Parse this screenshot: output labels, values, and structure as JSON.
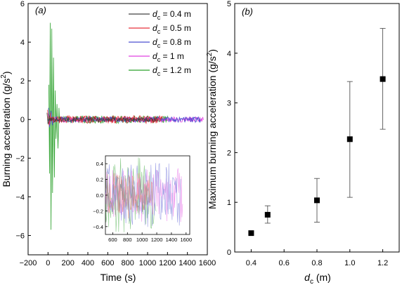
{
  "chart_data": [
    {
      "type": "line",
      "panel_label": "(a)",
      "xlabel": "Time (s)",
      "ylabel_main": "Burning acceleration (g/s",
      "ylabel_sup": "2",
      "ylabel_tail": ")",
      "xlim": [
        -200,
        1600
      ],
      "ylim": [
        -7,
        6
      ],
      "xticks": [
        -200,
        0,
        200,
        400,
        600,
        800,
        1000,
        1200,
        1400,
        1600
      ],
      "yticks": [
        -6,
        -4,
        -2,
        0,
        2,
        4,
        6
      ],
      "ytick_labels": [
        "−6",
        "−4",
        "−2",
        "0",
        "2",
        "4",
        "6"
      ],
      "xtick_labels": [
        "−200",
        "0",
        "200",
        "400",
        "600",
        "800",
        "1000",
        "1200",
        "1400",
        "1600"
      ],
      "legend_position": "top-right",
      "series": [
        {
          "name_prefix": "d",
          "name_sub": "c",
          "name_value": " = 0.4 m",
          "color": "#404040",
          "t_start": -20,
          "t_end": 1100,
          "amp": 0.12,
          "spikes": [
            [
              -10,
              0.35
            ],
            [
              0,
              -0.25
            ],
            [
              15,
              0.2
            ]
          ]
        },
        {
          "name_prefix": "d",
          "name_sub": "c",
          "name_value": " = 0.5 m",
          "color": "#e8303a",
          "t_start": -10,
          "t_end": 1150,
          "amp": 0.2,
          "spikes": [
            [
              -5,
              0.5
            ],
            [
              10,
              -0.3
            ],
            [
              25,
              0.35
            ]
          ]
        },
        {
          "name_prefix": "d",
          "name_sub": "c",
          "name_value": " = 0.8 m",
          "color": "#4a4fd0",
          "t_start": 0,
          "t_end": 1530,
          "amp": 0.15,
          "spikes": [
            [
              5,
              0.6
            ],
            [
              15,
              -0.4
            ],
            [
              30,
              0.45
            ],
            [
              45,
              -0.3
            ]
          ]
        },
        {
          "name_prefix": "d",
          "name_sub": "c",
          "name_value": " = 1 m",
          "color": "#e040e0",
          "t_start": 0,
          "t_end": 1560,
          "amp": 0.14,
          "spikes": [
            [
              5,
              0.3
            ],
            [
              20,
              -0.25
            ]
          ]
        },
        {
          "name_prefix": "d",
          "name_sub": "c",
          "name_value": " = 1.2 m",
          "color": "#2aa02a",
          "t_start": 0,
          "t_end": 1200,
          "amp": 0.2,
          "spikes": [
            [
              8,
              1.8
            ],
            [
              15,
              -2.8
            ],
            [
              22,
              5.0
            ],
            [
              30,
              -5.7
            ],
            [
              38,
              4.7
            ],
            [
              46,
              -3.8
            ],
            [
              55,
              3.2
            ],
            [
              64,
              -3.0
            ],
            [
              72,
              1.5
            ],
            [
              80,
              -1.0
            ],
            [
              90,
              0.8
            ],
            [
              100,
              -1.5
            ],
            [
              110,
              0.6
            ]
          ]
        }
      ],
      "inset": {
        "xlim": [
          500,
          1650
        ],
        "ylim": [
          -0.5,
          0.5
        ],
        "xticks": [
          600,
          800,
          1000,
          1200,
          1400,
          1600
        ],
        "yticks": [
          -0.4,
          -0.2,
          0.0,
          0.2,
          0.4
        ],
        "ytick_labels": [
          "−0.4",
          "−0.2",
          "0.0",
          "0.2",
          "0.4"
        ],
        "xtick_labels": [
          "600",
          "800",
          "1000",
          "1200",
          "1400",
          "1600"
        ]
      }
    },
    {
      "type": "scatter",
      "panel_label": "(b)",
      "xlabel_prefix": "d",
      "xlabel_sub": "c",
      "xlabel_unit": " (m)",
      "ylabel_main": "Maximum burning acceleration (g/s",
      "ylabel_sup": "2",
      "ylabel_tail": ")",
      "xlim": [
        0.3,
        1.3
      ],
      "ylim": [
        0,
        5
      ],
      "xticks": [
        0.4,
        0.6,
        0.8,
        1.0,
        1.2
      ],
      "xtick_labels": [
        "0.4",
        "0.6",
        "0.8",
        "1.0",
        "1.2"
      ],
      "yticks": [
        0,
        1,
        2,
        3,
        4,
        5
      ],
      "ytick_labels": [
        "0",
        "1",
        "2",
        "3",
        "4",
        "5"
      ],
      "x": [
        0.4,
        0.5,
        0.8,
        1.0,
        1.2
      ],
      "y": [
        0.38,
        0.75,
        1.04,
        2.27,
        3.48
      ],
      "err_low": [
        null,
        0.58,
        0.6,
        1.1,
        2.47
      ],
      "err_high": [
        null,
        0.93,
        1.48,
        3.43,
        4.5
      ]
    }
  ]
}
